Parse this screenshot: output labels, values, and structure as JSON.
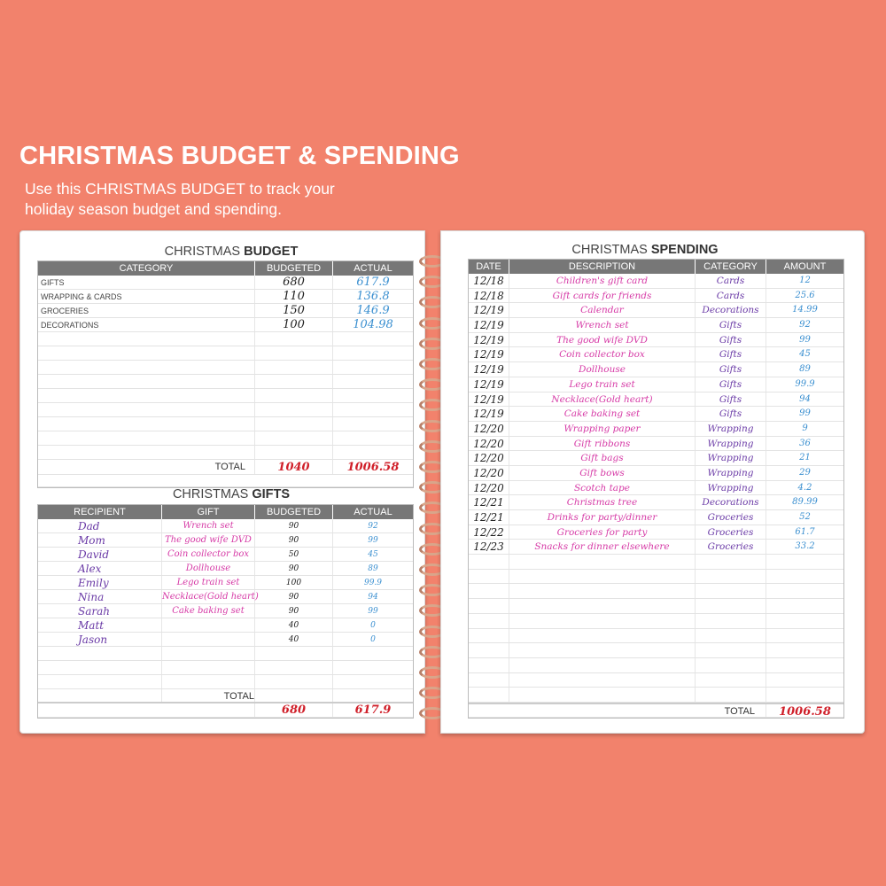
{
  "header": {
    "title": "CHRISTMAS BUDGET & SPENDING",
    "subtitle_line1": "Use this CHRISTMAS BUDGET to track your",
    "subtitle_line2": "holiday season budget and spending."
  },
  "colors": {
    "background": "#f2826c",
    "header_gray": "#777777",
    "budget_ink": "#222222",
    "actual_ink": "#3a8fd0",
    "total_ink": "#d0202a",
    "description_ink": "#d63aa6",
    "category_ink": "#6a3aa6"
  },
  "budget": {
    "title_light": "CHRISTMAS ",
    "title_bold": "BUDGET",
    "columns": [
      "CATEGORY",
      "BUDGETED",
      "ACTUAL"
    ],
    "rows": [
      [
        "GIFTS",
        "680",
        "617.9"
      ],
      [
        "WRAPPING & CARDS",
        "110",
        "136.8"
      ],
      [
        "GROCERIES",
        "150",
        "146.9"
      ],
      [
        "DECORATIONS",
        "100",
        "104.98"
      ]
    ],
    "total_label": "TOTAL",
    "total_budgeted": "1040",
    "total_actual": "1006.58"
  },
  "gifts": {
    "title_light": "CHRISTMAS ",
    "title_bold": "GIFTS",
    "columns": [
      "RECIPIENT",
      "GIFT",
      "BUDGETED",
      "ACTUAL"
    ],
    "rows": [
      [
        "Dad",
        "Wrench set",
        "90",
        "92"
      ],
      [
        "Mom",
        "The good wife DVD",
        "90",
        "99"
      ],
      [
        "David",
        "Coin collector box",
        "50",
        "45"
      ],
      [
        "Alex",
        "Dollhouse",
        "90",
        "89"
      ],
      [
        "Emily",
        "Lego train set",
        "100",
        "99.9"
      ],
      [
        "Nina",
        "Necklace(Gold heart)",
        "90",
        "94"
      ],
      [
        "Sarah",
        "Cake baking set",
        "90",
        "99"
      ],
      [
        "Matt",
        "",
        "40",
        "0"
      ],
      [
        "Jason",
        "",
        "40",
        "0"
      ]
    ],
    "total_label": "TOTAL",
    "total_budgeted": "680",
    "total_actual": "617.9"
  },
  "spending": {
    "title_light": "CHRISTMAS ",
    "title_bold": "SPENDING",
    "columns": [
      "DATE",
      "DESCRIPTION",
      "CATEGORY",
      "AMOUNT"
    ],
    "rows": [
      [
        "12/18",
        "Children's gift card",
        "Cards",
        "12"
      ],
      [
        "12/18",
        "Gift cards for friends",
        "Cards",
        "25.6"
      ],
      [
        "12/19",
        "Calendar",
        "Decorations",
        "14.99"
      ],
      [
        "12/19",
        "Wrench set",
        "Gifts",
        "92"
      ],
      [
        "12/19",
        "The good wife DVD",
        "Gifts",
        "99"
      ],
      [
        "12/19",
        "Coin collector box",
        "Gifts",
        "45"
      ],
      [
        "12/19",
        "Dollhouse",
        "Gifts",
        "89"
      ],
      [
        "12/19",
        "Lego train set",
        "Gifts",
        "99.9"
      ],
      [
        "12/19",
        "Necklace(Gold heart)",
        "Gifts",
        "94"
      ],
      [
        "12/19",
        "Cake baking set",
        "Gifts",
        "99"
      ],
      [
        "12/20",
        "Wrapping paper",
        "Wrapping",
        "9"
      ],
      [
        "12/20",
        "Gift ribbons",
        "Wrapping",
        "36"
      ],
      [
        "12/20",
        "Gift bags",
        "Wrapping",
        "21"
      ],
      [
        "12/20",
        "Gift bows",
        "Wrapping",
        "29"
      ],
      [
        "12/20",
        "Scotch tape",
        "Wrapping",
        "4.2"
      ],
      [
        "12/21",
        "Christmas tree",
        "Decorations",
        "89.99"
      ],
      [
        "12/21",
        "Drinks for party/dinner",
        "Groceries",
        "52"
      ],
      [
        "12/22",
        "Groceries for party",
        "Groceries",
        "61.7"
      ],
      [
        "12/23",
        "Snacks for dinner elsewhere",
        "Groceries",
        "33.2"
      ]
    ],
    "total_label": "TOTAL",
    "total_amount": "1006.58"
  }
}
